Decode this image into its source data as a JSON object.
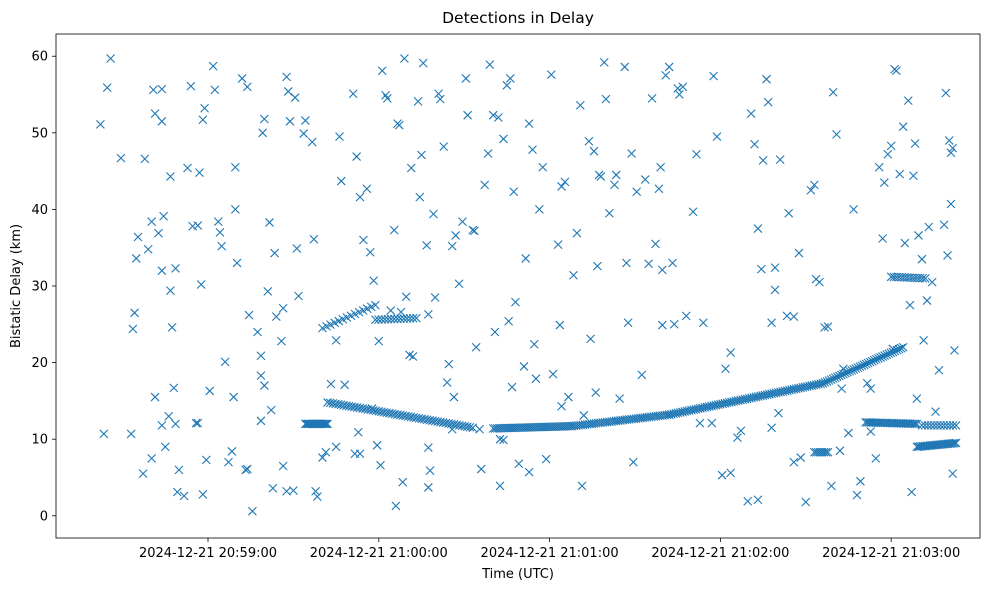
{
  "chart_data": {
    "type": "scatter",
    "title": "Detections in Delay",
    "xlabel": "Time (UTC)",
    "ylabel": "Bistatic Delay (km)",
    "marker": "x",
    "color": "#1f77b4",
    "x_unit": "minutes after 2024-12-21 20:59:00",
    "xlim": [
      -0.89,
      4.52
    ],
    "ylim": [
      -2.9,
      62.9
    ],
    "x_ticks": [
      {
        "value": 0,
        "label": "2024-12-21 20:59:00"
      },
      {
        "value": 1,
        "label": "2024-12-21 21:00:00"
      },
      {
        "value": 2,
        "label": "2024-12-21 21:01:00"
      },
      {
        "value": 3,
        "label": "2024-12-21 21:02:00"
      },
      {
        "value": 4,
        "label": "2024-12-21 21:03:00"
      }
    ],
    "y_ticks": [
      0,
      10,
      20,
      30,
      40,
      50,
      60
    ],
    "grid": false,
    "tracks": [
      {
        "x_start": 0.57,
        "x_end": 0.7,
        "y_start": 12.0,
        "y_end": 12.0,
        "n": 18
      },
      {
        "x_start": 0.7,
        "x_end": 1.55,
        "y_start": 14.8,
        "y_end": 11.5,
        "n": 55
      },
      {
        "x_start": 0.67,
        "x_end": 0.98,
        "y_start": 24.5,
        "y_end": 27.5,
        "n": 14
      },
      {
        "x_start": 0.98,
        "x_end": 1.22,
        "y_start": 25.6,
        "y_end": 25.8,
        "n": 14
      },
      {
        "x_start": 1.67,
        "x_end": 2.13,
        "y_start": 11.4,
        "y_end": 11.7,
        "n": 40
      },
      {
        "x_start": 2.13,
        "x_end": 2.7,
        "y_start": 11.7,
        "y_end": 13.2,
        "n": 45
      },
      {
        "x_start": 2.7,
        "x_end": 3.6,
        "y_start": 13.2,
        "y_end": 17.3,
        "n": 70
      },
      {
        "x_start": 3.6,
        "x_end": 4.07,
        "y_start": 17.3,
        "y_end": 22.0,
        "n": 40
      },
      {
        "x_start": 3.55,
        "x_end": 3.63,
        "y_start": 8.3,
        "y_end": 8.3,
        "n": 8
      },
      {
        "x_start": 3.85,
        "x_end": 4.15,
        "y_start": 12.2,
        "y_end": 12.0,
        "n": 30
      },
      {
        "x_start": 4.15,
        "x_end": 4.38,
        "y_start": 9.0,
        "y_end": 9.5,
        "n": 25
      },
      {
        "x_start": 4.18,
        "x_end": 4.38,
        "y_start": 11.8,
        "y_end": 11.8,
        "n": 12
      },
      {
        "x_start": 4.0,
        "x_end": 4.2,
        "y_start": 31.2,
        "y_end": 31.0,
        "n": 14
      }
    ],
    "scatter_points": [
      [
        -0.63,
        51.1
      ],
      [
        -0.59,
        55.9
      ],
      [
        -0.57,
        59.7
      ],
      [
        -0.51,
        46.7
      ],
      [
        -0.44,
        24.4
      ],
      [
        -0.43,
        26.5
      ],
      [
        -0.42,
        33.6
      ],
      [
        -0.41,
        36.4
      ],
      [
        -0.38,
        5.5
      ],
      [
        -0.37,
        46.6
      ],
      [
        -0.35,
        34.8
      ],
      [
        -0.33,
        38.4
      ],
      [
        -0.32,
        55.6
      ],
      [
        -0.31,
        52.5
      ],
      [
        -0.31,
        15.5
      ],
      [
        -0.29,
        36.9
      ],
      [
        -0.27,
        55.7
      ],
      [
        -0.27,
        51.5
      ],
      [
        -0.26,
        39.1
      ],
      [
        -0.27,
        32.0
      ],
      [
        -0.25,
        9.0
      ],
      [
        -0.23,
        13.0
      ],
      [
        -0.22,
        44.3
      ],
      [
        -0.22,
        29.4
      ],
      [
        -0.21,
        24.6
      ],
      [
        -0.2,
        16.7
      ],
      [
        -0.19,
        32.3
      ],
      [
        -0.18,
        3.1
      ],
      [
        -0.14,
        2.6
      ],
      [
        -0.12,
        45.4
      ],
      [
        -0.1,
        56.1
      ],
      [
        -0.09,
        37.8
      ],
      [
        -0.07,
        12.1
      ],
      [
        -0.06,
        37.9
      ],
      [
        -0.05,
        44.8
      ],
      [
        -0.04,
        30.2
      ],
      [
        -0.03,
        51.7
      ],
      [
        -0.02,
        53.2
      ],
      [
        -0.01,
        7.3
      ],
      [
        0.01,
        16.3
      ],
      [
        0.03,
        58.7
      ],
      [
        0.04,
        55.6
      ],
      [
        0.06,
        38.4
      ],
      [
        0.07,
        37.0
      ],
      [
        0.08,
        35.2
      ],
      [
        0.1,
        20.1
      ],
      [
        0.14,
        8.4
      ],
      [
        0.15,
        15.5
      ],
      [
        0.16,
        45.5
      ],
      [
        0.16,
        40.0
      ],
      [
        0.17,
        33.0
      ],
      [
        0.2,
        57.1
      ],
      [
        0.23,
        56.0
      ],
      [
        0.24,
        26.2
      ],
      [
        0.26,
        0.6
      ],
      [
        0.29,
        24.0
      ],
      [
        0.31,
        20.9
      ],
      [
        0.32,
        50.0
      ],
      [
        0.33,
        51.8
      ],
      [
        0.36,
        38.3
      ],
      [
        0.37,
        13.8
      ],
      [
        0.38,
        3.6
      ],
      [
        0.39,
        34.3
      ],
      [
        0.43,
        22.8
      ],
      [
        0.44,
        6.5
      ],
      [
        0.46,
        57.3
      ],
      [
        0.46,
        3.2
      ],
      [
        0.47,
        55.4
      ],
      [
        0.48,
        51.5
      ],
      [
        0.51,
        54.6
      ],
      [
        0.52,
        34.9
      ],
      [
        0.53,
        28.7
      ],
      [
        0.56,
        49.9
      ],
      [
        0.57,
        51.6
      ],
      [
        0.61,
        48.8
      ],
      [
        0.62,
        36.1
      ],
      [
        0.64,
        2.5
      ],
      [
        0.67,
        7.6
      ],
      [
        0.69,
        8.3
      ],
      [
        0.72,
        17.2
      ],
      [
        0.75,
        22.9
      ],
      [
        0.77,
        49.5
      ],
      [
        0.78,
        43.7
      ],
      [
        0.8,
        17.1
      ],
      [
        0.85,
        55.1
      ],
      [
        0.87,
        46.9
      ],
      [
        0.88,
        10.9
      ],
      [
        0.89,
        8.1
      ],
      [
        0.89,
        41.6
      ],
      [
        0.91,
        36.0
      ],
      [
        0.93,
        42.7
      ],
      [
        0.95,
        34.4
      ],
      [
        0.96,
        14.0
      ],
      [
        0.97,
        30.7
      ],
      [
        1.0,
        22.8
      ],
      [
        1.01,
        6.6
      ],
      [
        1.02,
        58.1
      ],
      [
        1.04,
        54.9
      ],
      [
        1.05,
        54.5
      ],
      [
        1.07,
        26.8
      ],
      [
        1.09,
        37.3
      ],
      [
        1.1,
        1.3
      ],
      [
        1.11,
        51.2
      ],
      [
        1.12,
        51.0
      ],
      [
        1.13,
        26.6
      ],
      [
        1.15,
        59.7
      ],
      [
        1.16,
        28.6
      ],
      [
        1.18,
        21.0
      ],
      [
        1.19,
        45.4
      ],
      [
        1.2,
        20.8
      ],
      [
        1.23,
        54.1
      ],
      [
        1.24,
        41.6
      ],
      [
        1.25,
        47.1
      ],
      [
        1.26,
        59.1
      ],
      [
        1.28,
        35.3
      ],
      [
        1.29,
        26.3
      ],
      [
        1.29,
        3.7
      ],
      [
        1.3,
        5.9
      ],
      [
        1.32,
        39.4
      ],
      [
        1.33,
        28.5
      ],
      [
        1.35,
        55.1
      ],
      [
        1.36,
        54.4
      ],
      [
        1.38,
        48.2
      ],
      [
        1.4,
        17.4
      ],
      [
        1.41,
        19.8
      ],
      [
        1.43,
        35.2
      ],
      [
        1.44,
        15.5
      ],
      [
        1.45,
        36.6
      ],
      [
        1.47,
        30.3
      ],
      [
        1.49,
        38.4
      ],
      [
        1.51,
        57.1
      ],
      [
        1.52,
        52.3
      ],
      [
        1.55,
        37.3
      ],
      [
        1.56,
        37.2
      ],
      [
        1.57,
        22.0
      ],
      [
        1.6,
        6.1
      ],
      [
        1.62,
        43.2
      ],
      [
        1.64,
        47.3
      ],
      [
        1.65,
        58.9
      ],
      [
        1.67,
        52.3
      ],
      [
        1.68,
        24.0
      ],
      [
        1.7,
        52.0
      ],
      [
        1.71,
        3.9
      ],
      [
        1.73,
        49.2
      ],
      [
        1.75,
        56.2
      ],
      [
        1.77,
        57.1
      ],
      [
        1.79,
        42.3
      ],
      [
        1.78,
        16.8
      ],
      [
        1.8,
        27.9
      ],
      [
        1.82,
        6.8
      ],
      [
        1.85,
        19.5
      ],
      [
        1.86,
        33.6
      ],
      [
        1.88,
        51.2
      ],
      [
        1.9,
        47.8
      ],
      [
        1.91,
        22.4
      ],
      [
        1.92,
        17.9
      ],
      [
        1.94,
        40.0
      ],
      [
        1.96,
        45.5
      ],
      [
        1.98,
        7.4
      ],
      [
        2.01,
        57.6
      ],
      [
        2.05,
        35.4
      ],
      [
        2.06,
        24.9
      ],
      [
        2.07,
        43.0
      ],
      [
        2.09,
        43.6
      ],
      [
        2.11,
        15.5
      ],
      [
        2.14,
        31.4
      ],
      [
        2.16,
        36.9
      ],
      [
        2.18,
        53.6
      ],
      [
        2.19,
        3.9
      ],
      [
        2.23,
        48.9
      ],
      [
        2.24,
        23.1
      ],
      [
        2.26,
        47.6
      ],
      [
        2.28,
        32.6
      ],
      [
        2.29,
        44.5
      ],
      [
        2.3,
        44.3
      ],
      [
        2.32,
        59.2
      ],
      [
        2.33,
        54.4
      ],
      [
        2.35,
        39.5
      ],
      [
        2.38,
        43.2
      ],
      [
        2.39,
        44.5
      ],
      [
        2.41,
        15.3
      ],
      [
        2.44,
        58.6
      ],
      [
        2.45,
        33.0
      ],
      [
        2.48,
        47.3
      ],
      [
        2.49,
        7.0
      ],
      [
        2.51,
        42.3
      ],
      [
        2.54,
        18.4
      ],
      [
        2.56,
        43.9
      ],
      [
        2.58,
        32.9
      ],
      [
        2.6,
        54.5
      ],
      [
        2.62,
        35.5
      ],
      [
        2.64,
        42.7
      ],
      [
        2.65,
        45.5
      ],
      [
        2.66,
        32.1
      ],
      [
        2.68,
        57.5
      ],
      [
        2.7,
        58.6
      ],
      [
        2.72,
        33.0
      ],
      [
        2.73,
        25.0
      ],
      [
        2.75,
        55.8
      ],
      [
        2.76,
        55.0
      ],
      [
        2.78,
        56.0
      ],
      [
        2.8,
        26.1
      ],
      [
        2.84,
        39.7
      ],
      [
        2.86,
        47.2
      ],
      [
        2.9,
        25.2
      ],
      [
        2.95,
        12.1
      ],
      [
        2.96,
        57.4
      ],
      [
        2.98,
        49.5
      ],
      [
        3.01,
        5.3
      ],
      [
        3.03,
        19.2
      ],
      [
        3.06,
        21.3
      ],
      [
        3.1,
        10.2
      ],
      [
        3.12,
        11.1
      ],
      [
        3.16,
        1.9
      ],
      [
        3.18,
        52.5
      ],
      [
        3.2,
        48.5
      ],
      [
        3.22,
        37.5
      ],
      [
        3.24,
        32.2
      ],
      [
        3.25,
        46.4
      ],
      [
        3.27,
        57.0
      ],
      [
        3.28,
        54.0
      ],
      [
        3.3,
        25.2
      ],
      [
        3.32,
        29.5
      ],
      [
        3.35,
        46.5
      ],
      [
        3.39,
        26.1
      ],
      [
        3.4,
        39.5
      ],
      [
        3.43,
        7.0
      ],
      [
        3.46,
        34.3
      ],
      [
        3.5,
        1.8
      ],
      [
        3.53,
        42.5
      ],
      [
        3.55,
        43.2
      ],
      [
        3.58,
        30.5
      ],
      [
        3.61,
        24.6
      ],
      [
        3.63,
        24.7
      ],
      [
        3.65,
        3.9
      ],
      [
        3.66,
        55.3
      ],
      [
        3.68,
        49.8
      ],
      [
        3.72,
        19.2
      ],
      [
        3.75,
        10.8
      ],
      [
        3.78,
        40.0
      ],
      [
        3.8,
        2.7
      ],
      [
        3.82,
        4.5
      ],
      [
        3.86,
        17.3
      ],
      [
        3.88,
        11.0
      ],
      [
        3.91,
        7.5
      ],
      [
        3.93,
        45.5
      ],
      [
        3.95,
        36.2
      ],
      [
        3.96,
        43.5
      ],
      [
        3.98,
        47.2
      ],
      [
        4.0,
        48.3
      ],
      [
        4.02,
        58.3
      ],
      [
        4.03,
        58.1
      ],
      [
        4.05,
        44.6
      ],
      [
        4.07,
        50.8
      ],
      [
        4.08,
        35.6
      ],
      [
        4.1,
        54.2
      ],
      [
        4.11,
        27.5
      ],
      [
        4.13,
        44.4
      ],
      [
        4.14,
        48.6
      ],
      [
        4.15,
        15.3
      ],
      [
        4.16,
        36.6
      ],
      [
        4.18,
        33.5
      ],
      [
        4.19,
        22.9
      ],
      [
        4.21,
        28.1
      ],
      [
        4.22,
        37.7
      ],
      [
        4.24,
        30.5
      ],
      [
        4.26,
        13.6
      ],
      [
        4.28,
        19.0
      ],
      [
        4.31,
        38.0
      ],
      [
        4.32,
        55.2
      ],
      [
        4.33,
        34.0
      ],
      [
        4.34,
        49.0
      ],
      [
        4.35,
        47.4
      ],
      [
        4.36,
        48.0
      ],
      [
        4.35,
        40.7
      ],
      [
        4.37,
        21.6
      ],
      [
        4.36,
        5.5
      ],
      [
        4.12,
        3.1
      ],
      [
        4.01,
        21.8
      ],
      [
        3.7,
        8.5
      ],
      [
        3.47,
        7.6
      ],
      [
        3.34,
        13.4
      ],
      [
        3.22,
        2.1
      ],
      [
        3.06,
        5.6
      ],
      [
        2.88,
        12.1
      ],
      [
        2.66,
        24.9
      ],
      [
        2.46,
        25.2
      ],
      [
        2.27,
        16.1
      ],
      [
        2.07,
        14.3
      ],
      [
        1.88,
        5.7
      ],
      [
        1.71,
        10.0
      ],
      [
        1.59,
        11.3
      ],
      [
        1.43,
        11.3
      ],
      [
        1.29,
        8.9
      ],
      [
        1.14,
        4.4
      ],
      [
        0.99,
        9.2
      ],
      [
        0.86,
        8.1
      ],
      [
        0.75,
        9.0
      ],
      [
        0.63,
        3.2
      ],
      [
        0.5,
        3.3
      ],
      [
        0.4,
        26.0
      ],
      [
        0.31,
        12.4
      ],
      [
        0.22,
        6.0
      ],
      [
        0.12,
        7.0
      ],
      [
        -0.03,
        2.8
      ],
      [
        -0.17,
        6.0
      ],
      [
        -0.27,
        11.8
      ],
      [
        -0.33,
        7.5
      ],
      [
        -0.45,
        10.7
      ],
      [
        -0.61,
        10.7
      ],
      [
        -0.19,
        12.0
      ],
      [
        -0.06,
        12.1
      ],
      [
        0.23,
        6.1
      ],
      [
        0.33,
        17.0
      ],
      [
        0.31,
        18.3
      ],
      [
        0.35,
        29.3
      ],
      [
        0.44,
        27.1
      ],
      [
        1.73,
        9.9
      ],
      [
        1.76,
        25.4
      ],
      [
        2.02,
        18.5
      ],
      [
        2.2,
        13.1
      ],
      [
        3.32,
        32.4
      ],
      [
        3.43,
        26.0
      ],
      [
        3.56,
        30.9
      ],
      [
        3.88,
        16.6
      ],
      [
        3.71,
        16.6
      ],
      [
        3.3,
        11.5
      ]
    ]
  }
}
